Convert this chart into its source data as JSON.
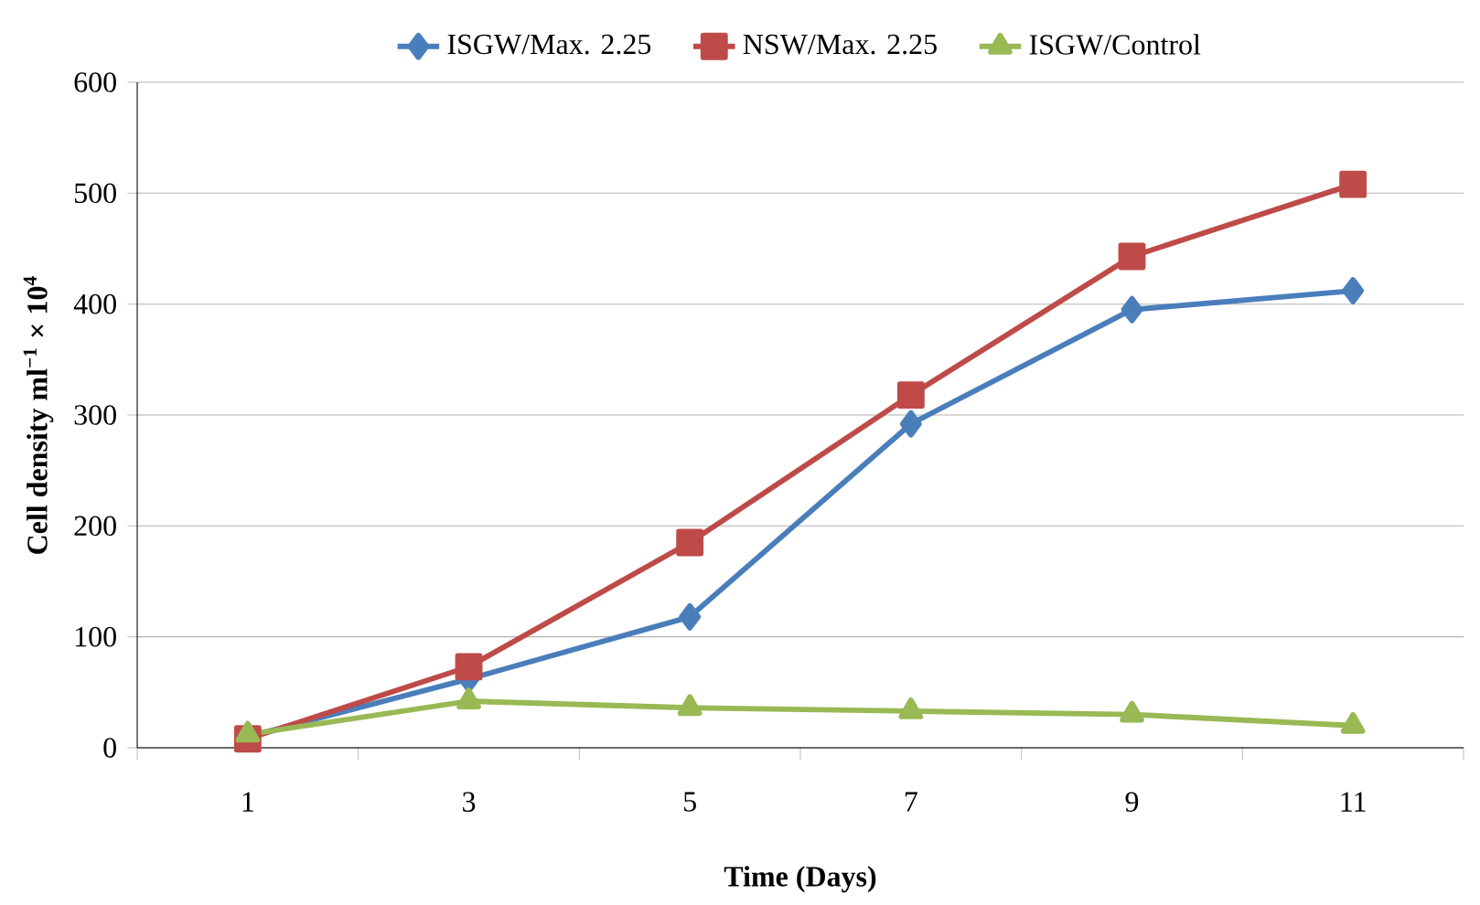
{
  "chart_data": {
    "type": "line",
    "xlabel": "Time (Days)",
    "ylabel": "Cell density  ml$^{−1}$ × 10$^{4}$",
    "categories": [
      "1",
      "3",
      "5",
      "7",
      "9",
      "11"
    ],
    "ylim": [
      0,
      600
    ],
    "yticks": [
      0,
      100,
      200,
      300,
      400,
      500,
      600
    ],
    "grid": "y",
    "legend": "top",
    "line_style": "solid",
    "series": [
      {
        "name": "ISGW/Max. 2.25",
        "color": "#4a7ebb",
        "marker": "diamond",
        "values": [
          10,
          62,
          118,
          292,
          395,
          412
        ]
      },
      {
        "name": "NSW/Max. 2.25",
        "color": "#be4b48",
        "marker": "square",
        "values": [
          8,
          73,
          185,
          318,
          443,
          508
        ]
      },
      {
        "name": "ISGW/Control",
        "color": "#98b954",
        "marker": "triangle",
        "values": [
          12,
          42,
          36,
          33,
          30,
          20
        ]
      }
    ]
  }
}
